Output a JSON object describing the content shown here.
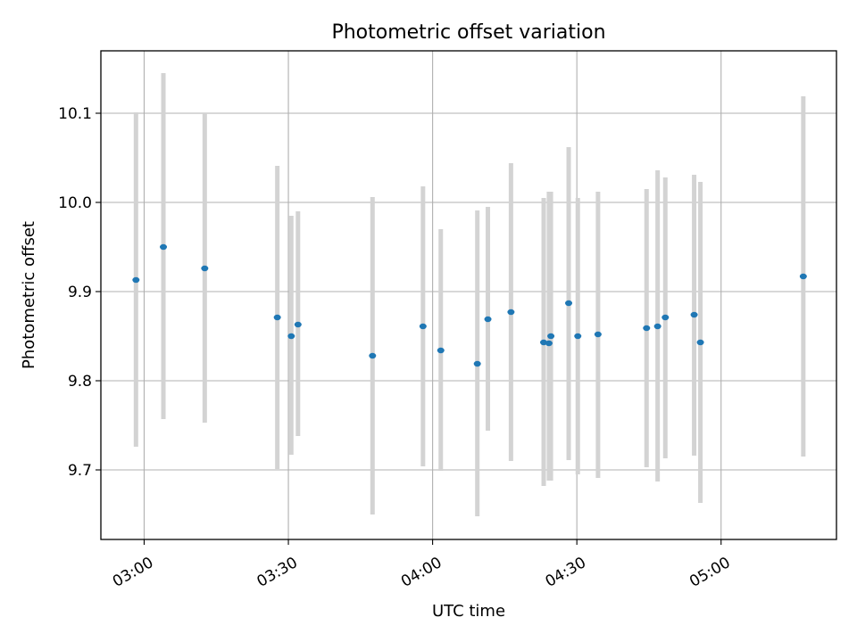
{
  "chart_data": {
    "type": "scatter",
    "title": "Photometric offset variation",
    "xlabel": "UTC time",
    "ylabel": "Photometric offset",
    "x_unit": "minutes after 02:00 UTC",
    "xlim": [
      51,
      204
    ],
    "ylim": [
      9.622,
      10.17
    ],
    "x_ticks": [
      {
        "value": 60,
        "label": "03:00"
      },
      {
        "value": 90,
        "label": "03:30"
      },
      {
        "value": 120,
        "label": "04:00"
      },
      {
        "value": 150,
        "label": "04:30"
      },
      {
        "value": 180,
        "label": "05:00"
      }
    ],
    "y_ticks": [
      {
        "value": 9.7,
        "label": "9.7"
      },
      {
        "value": 9.8,
        "label": "9.8"
      },
      {
        "value": 9.9,
        "label": "9.9"
      },
      {
        "value": 10.0,
        "label": "10.0"
      },
      {
        "value": 10.1,
        "label": "10.1"
      }
    ],
    "grid": true,
    "colors": {
      "point": "#1f77b4",
      "errorbar": "#d3d3d3",
      "grid": "#b0b0b0"
    },
    "series": [
      {
        "points": [
          {
            "x": 58.3,
            "y": 9.913,
            "err_low": 9.726,
            "err_high": 10.101
          },
          {
            "x": 64.0,
            "y": 9.95,
            "err_low": 9.757,
            "err_high": 10.145
          },
          {
            "x": 72.6,
            "y": 9.926,
            "err_low": 9.753,
            "err_high": 10.1
          },
          {
            "x": 87.7,
            "y": 9.871,
            "err_low": 9.701,
            "err_high": 10.041
          },
          {
            "x": 90.6,
            "y": 9.85,
            "err_low": 9.717,
            "err_high": 9.985
          },
          {
            "x": 92.0,
            "y": 9.863,
            "err_low": 9.738,
            "err_high": 9.99
          },
          {
            "x": 107.5,
            "y": 9.828,
            "err_low": 9.65,
            "err_high": 10.006
          },
          {
            "x": 118.0,
            "y": 9.861,
            "err_low": 9.704,
            "err_high": 10.018
          },
          {
            "x": 121.7,
            "y": 9.834,
            "err_low": 9.699,
            "err_high": 9.97
          },
          {
            "x": 129.3,
            "y": 9.819,
            "err_low": 9.648,
            "err_high": 9.991
          },
          {
            "x": 131.5,
            "y": 9.869,
            "err_low": 9.744,
            "err_high": 9.995
          },
          {
            "x": 136.3,
            "y": 9.877,
            "err_low": 9.71,
            "err_high": 10.044
          },
          {
            "x": 143.1,
            "y": 9.843,
            "err_low": 9.682,
            "err_high": 10.005
          },
          {
            "x": 144.2,
            "y": 9.842,
            "err_low": 9.688,
            "err_high": 10.012
          },
          {
            "x": 144.6,
            "y": 9.85,
            "err_low": 9.688,
            "err_high": 10.012
          },
          {
            "x": 148.3,
            "y": 9.887,
            "err_low": 9.711,
            "err_high": 10.062
          },
          {
            "x": 150.2,
            "y": 9.85,
            "err_low": 9.695,
            "err_high": 10.005
          },
          {
            "x": 154.4,
            "y": 9.852,
            "err_low": 9.691,
            "err_high": 10.012
          },
          {
            "x": 164.5,
            "y": 9.859,
            "err_low": 9.703,
            "err_high": 10.015
          },
          {
            "x": 166.8,
            "y": 9.861,
            "err_low": 9.687,
            "err_high": 10.036
          },
          {
            "x": 168.4,
            "y": 9.871,
            "err_low": 9.713,
            "err_high": 10.028
          },
          {
            "x": 174.4,
            "y": 9.874,
            "err_low": 9.716,
            "err_high": 10.031
          },
          {
            "x": 175.7,
            "y": 9.843,
            "err_low": 9.663,
            "err_high": 10.023
          },
          {
            "x": 197.1,
            "y": 9.917,
            "err_low": 9.715,
            "err_high": 10.119
          }
        ]
      }
    ]
  }
}
